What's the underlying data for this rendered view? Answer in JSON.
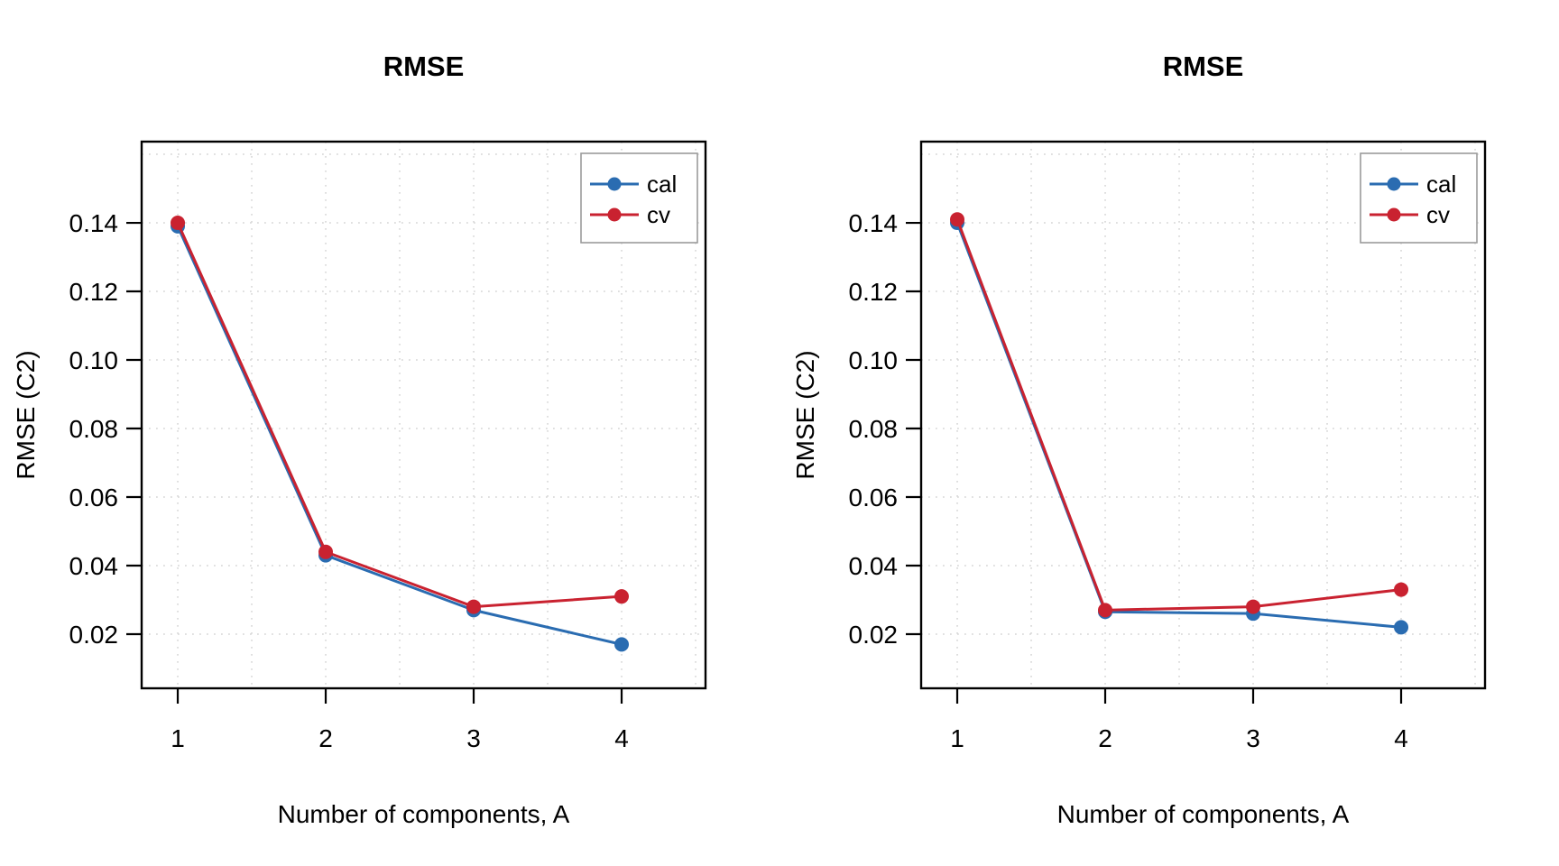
{
  "page": {
    "background": "#ffffff"
  },
  "colors": {
    "cal": "#2A6CB1",
    "cv": "#C92230",
    "grid": "#d5d5d5",
    "axis": "#000000",
    "legend_border": "#9b9b9b",
    "legend_bg": "#ffffff"
  },
  "chart_data": [
    {
      "type": "line",
      "title": "RMSE",
      "xlabel": "Number of components, A",
      "ylabel": "RMSE (C2)",
      "x": [
        1,
        2,
        3,
        4
      ],
      "series": [
        {
          "name": "cal",
          "color": "#2A6CB1",
          "values": [
            0.139,
            0.043,
            0.027,
            0.017
          ]
        },
        {
          "name": "cv",
          "color": "#C92230",
          "values": [
            0.14,
            0.044,
            0.028,
            0.031
          ]
        }
      ],
      "xlim": [
        0.756,
        4.567
      ],
      "ylim": [
        0.0042,
        0.1637
      ],
      "xticks": [
        1,
        2,
        3,
        4
      ],
      "xtick_labels": [
        "1",
        "2",
        "3",
        "4"
      ],
      "yticks": [
        0.02,
        0.04,
        0.06,
        0.08,
        0.1,
        0.12,
        0.14
      ],
      "ytick_labels": [
        "0.02",
        "0.04",
        "0.06",
        "0.08",
        "0.10",
        "0.12",
        "0.14"
      ],
      "grid_x": [
        1,
        1.5,
        2,
        2.5,
        3,
        3.5,
        4,
        4.5
      ],
      "grid_y": [
        0.02,
        0.04,
        0.06,
        0.08,
        0.1,
        0.12,
        0.14,
        0.16
      ],
      "grid": "dotted",
      "legend_position": "top-right",
      "legend": [
        {
          "label": "cal",
          "color": "#2A6CB1"
        },
        {
          "label": "cv",
          "color": "#C92230"
        }
      ]
    },
    {
      "type": "line",
      "title": "RMSE",
      "xlabel": "Number of components, A",
      "ylabel": "RMSE (C2)",
      "x": [
        1,
        2,
        3,
        4
      ],
      "series": [
        {
          "name": "cal",
          "color": "#2A6CB1",
          "values": [
            0.14,
            0.0265,
            0.026,
            0.022
          ]
        },
        {
          "name": "cv",
          "color": "#C92230",
          "values": [
            0.141,
            0.027,
            0.028,
            0.033
          ]
        }
      ],
      "xlim": [
        0.756,
        4.567
      ],
      "ylim": [
        0.0042,
        0.1637
      ],
      "xticks": [
        1,
        2,
        3,
        4
      ],
      "xtick_labels": [
        "1",
        "2",
        "3",
        "4"
      ],
      "yticks": [
        0.02,
        0.04,
        0.06,
        0.08,
        0.1,
        0.12,
        0.14
      ],
      "ytick_labels": [
        "0.02",
        "0.04",
        "0.06",
        "0.08",
        "0.10",
        "0.12",
        "0.14"
      ],
      "grid_x": [
        1,
        1.5,
        2,
        2.5,
        3,
        3.5,
        4,
        4.5
      ],
      "grid_y": [
        0.02,
        0.04,
        0.06,
        0.08,
        0.1,
        0.12,
        0.14,
        0.16
      ],
      "grid": "dotted",
      "legend_position": "top-right",
      "legend": [
        {
          "label": "cal",
          "color": "#2A6CB1"
        },
        {
          "label": "cv",
          "color": "#C92230"
        }
      ]
    }
  ]
}
